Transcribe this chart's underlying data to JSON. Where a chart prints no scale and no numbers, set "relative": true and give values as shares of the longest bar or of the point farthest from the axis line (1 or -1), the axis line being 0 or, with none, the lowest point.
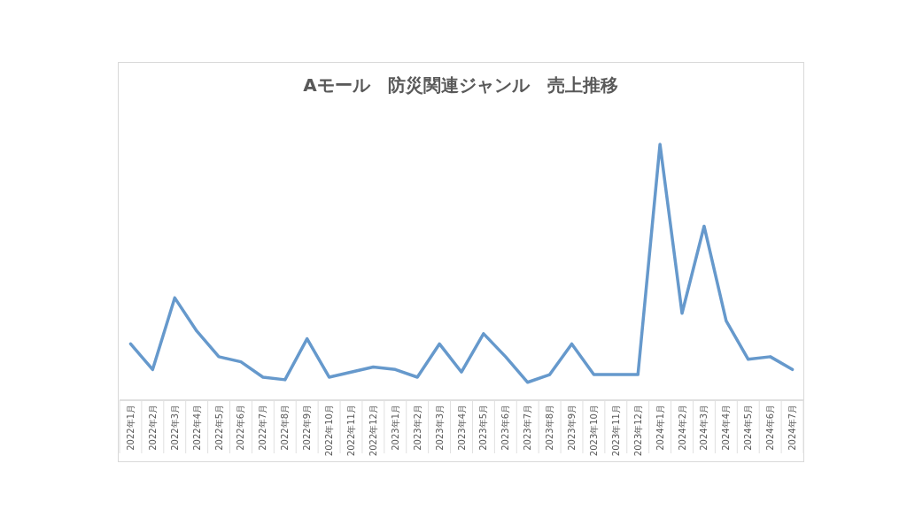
{
  "chart_data": {
    "type": "line",
    "title": "Aモール　防災関連ジャンル　売上推移",
    "relative": true,
    "color": "#6699cc",
    "categories": [
      "2022年1月",
      "2022年2月",
      "2022年3月",
      "2022年4月",
      "2022年5月",
      "2022年6月",
      "2022年7月",
      "2022年8月",
      "2022年9月",
      "2022年10月",
      "2022年11月",
      "2022年12月",
      "2023年1月",
      "2023年2月",
      "2023年3月",
      "2023年4月",
      "2023年5月",
      "2023年6月",
      "2023年7月",
      "2023年8月",
      "2023年9月",
      "2023年10月",
      "2023年11月",
      "2023年12月",
      "2024年1月",
      "2024年2月",
      "2024年3月",
      "2024年4月",
      "2024年5月",
      "2024年6月",
      "2024年7月"
    ],
    "values": [
      0.22,
      0.12,
      0.4,
      0.27,
      0.17,
      0.15,
      0.09,
      0.08,
      0.24,
      0.09,
      0.11,
      0.13,
      0.12,
      0.09,
      0.22,
      0.11,
      0.26,
      0.17,
      0.07,
      0.1,
      0.22,
      0.1,
      0.1,
      0.1,
      1,
      0.34,
      0.68,
      0.31,
      0.16,
      0.17,
      0.12
    ]
  }
}
